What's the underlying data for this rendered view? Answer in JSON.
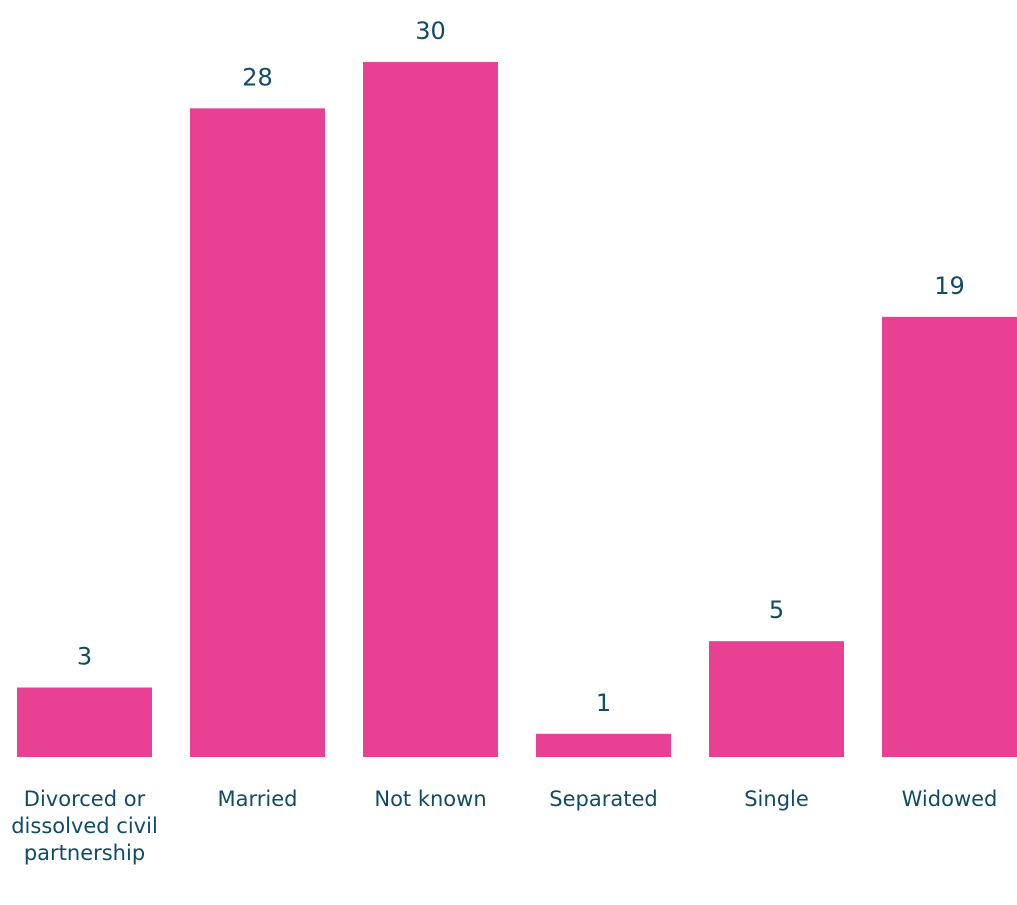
{
  "chart_data": {
    "type": "bar",
    "categories": [
      "Divorced or dissolved civil partnership",
      "Married",
      "Not known",
      "Separated",
      "Single",
      "Widowed"
    ],
    "values": [
      3,
      28,
      30,
      1,
      5,
      19
    ],
    "color": "#e84093"
  }
}
